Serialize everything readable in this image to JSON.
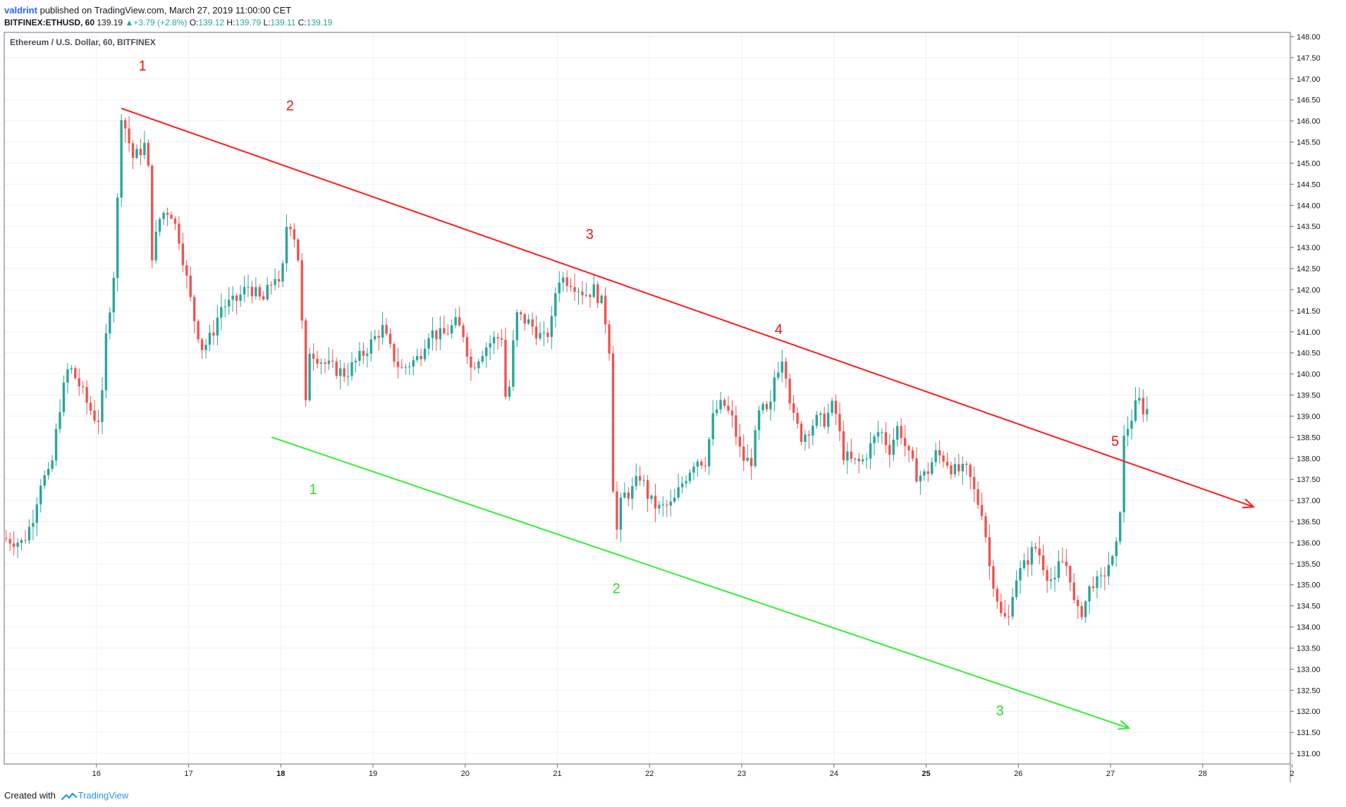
{
  "header": {
    "author": "valdrint",
    "published_text": "published on TradingView.com, March 27, 2019 11:00:00 CET"
  },
  "quote": {
    "symbol": "BITFINEX:ETHUSD, 60",
    "last": "139.19",
    "change": "+3.79 (+2.8%)",
    "o_label": "O:",
    "o_value": "139.12",
    "h_label": "H:",
    "h_value": "139.79",
    "l_label": "L:",
    "l_value": "139.11",
    "c_label": "C:",
    "c_value": "139.19"
  },
  "footer": {
    "created_with": "Created with",
    "brand": "TradingView",
    "icon": "tradingview-logo-icon"
  },
  "colors": {
    "bull": "#26a69a",
    "bear": "#ef5350",
    "resistance": "#ff1a1a",
    "support": "#33ee33",
    "grid": "#eef0f3"
  },
  "chart_data": {
    "type": "candlestick",
    "title": "Ethereum / U.S. Dollar, 60, BITFINEX",
    "ylim": [
      130.75,
      148.1
    ],
    "y_ticks": [
      "131.00",
      "131.50",
      "132.00",
      "132.50",
      "133.00",
      "133.50",
      "134.00",
      "134.50",
      "135.00",
      "135.50",
      "136.00",
      "136.50",
      "137.00",
      "137.50",
      "138.00",
      "138.50",
      "139.00",
      "139.50",
      "140.00",
      "140.50",
      "141.00",
      "141.50",
      "142.00",
      "142.50",
      "143.00",
      "143.50",
      "144.00",
      "144.50",
      "145.00",
      "145.50",
      "146.00",
      "146.50",
      "147.00",
      "147.50",
      "148.00"
    ],
    "x_range_days": [
      15.0,
      28.95
    ],
    "x_ticks": [
      {
        "day": 16,
        "label": "16",
        "bold": false
      },
      {
        "day": 17,
        "label": "17",
        "bold": false
      },
      {
        "day": 18,
        "label": "18",
        "bold": true
      },
      {
        "day": 19,
        "label": "19",
        "bold": false
      },
      {
        "day": 20,
        "label": "20",
        "bold": false
      },
      {
        "day": 21,
        "label": "21",
        "bold": false
      },
      {
        "day": 22,
        "label": "22",
        "bold": false
      },
      {
        "day": 23,
        "label": "23",
        "bold": false
      },
      {
        "day": 24,
        "label": "24",
        "bold": false
      },
      {
        "day": 25,
        "label": "25",
        "bold": true
      },
      {
        "day": 26,
        "label": "26",
        "bold": false
      },
      {
        "day": 27,
        "label": "27",
        "bold": false
      },
      {
        "day": 28,
        "label": "28",
        "bold": false
      },
      {
        "day": 28.97,
        "label": "2",
        "bold": false
      }
    ],
    "keypoints": [
      [
        15.0,
        136.1
      ],
      [
        15.2,
        136.0
      ],
      [
        15.3,
        136.5
      ],
      [
        15.4,
        137.5
      ],
      [
        15.5,
        137.6
      ],
      [
        15.6,
        139.2
      ],
      [
        15.7,
        140.2
      ],
      [
        15.8,
        139.8
      ],
      [
        15.9,
        139.3
      ],
      [
        16.0,
        138.9
      ],
      [
        16.05,
        139.0
      ],
      [
        16.1,
        140.8
      ],
      [
        16.2,
        142.6
      ],
      [
        16.27,
        146.2
      ],
      [
        16.4,
        145.1
      ],
      [
        16.55,
        145.5
      ],
      [
        16.6,
        142.8
      ],
      [
        16.7,
        143.8
      ],
      [
        16.8,
        143.9
      ],
      [
        16.9,
        143.2
      ],
      [
        17.05,
        141.4
      ],
      [
        17.15,
        140.6
      ],
      [
        17.25,
        140.9
      ],
      [
        17.35,
        141.6
      ],
      [
        17.5,
        141.7
      ],
      [
        17.65,
        142.1
      ],
      [
        17.8,
        141.7
      ],
      [
        17.95,
        142.4
      ],
      [
        18.0,
        141.8
      ],
      [
        18.05,
        143.5
      ],
      [
        18.12,
        143.6
      ],
      [
        18.2,
        142.6
      ],
      [
        18.27,
        139.2
      ],
      [
        18.3,
        140.6
      ],
      [
        18.5,
        140.2
      ],
      [
        18.7,
        140.0
      ],
      [
        18.9,
        140.5
      ],
      [
        19.1,
        141.1
      ],
      [
        19.2,
        140.5
      ],
      [
        19.3,
        140.1
      ],
      [
        19.5,
        140.4
      ],
      [
        19.6,
        141.0
      ],
      [
        19.75,
        140.9
      ],
      [
        19.9,
        141.2
      ],
      [
        20.0,
        140.9
      ],
      [
        20.05,
        140.1
      ],
      [
        20.2,
        140.6
      ],
      [
        20.3,
        140.8
      ],
      [
        20.4,
        140.9
      ],
      [
        20.45,
        139.0
      ],
      [
        20.55,
        141.4
      ],
      [
        20.7,
        141.2
      ],
      [
        20.85,
        140.8
      ],
      [
        20.93,
        141.1
      ],
      [
        21.0,
        142.3
      ],
      [
        21.15,
        142.2
      ],
      [
        21.3,
        141.9
      ],
      [
        21.4,
        142.0
      ],
      [
        21.5,
        141.6
      ],
      [
        21.57,
        140.5
      ],
      [
        21.62,
        135.9
      ],
      [
        21.7,
        137.1
      ],
      [
        21.8,
        137.2
      ],
      [
        21.9,
        137.6
      ],
      [
        22.0,
        137.0
      ],
      [
        22.1,
        136.8
      ],
      [
        22.25,
        136.9
      ],
      [
        22.35,
        137.4
      ],
      [
        22.5,
        138.0
      ],
      [
        22.6,
        137.9
      ],
      [
        22.7,
        139.1
      ],
      [
        22.8,
        139.3
      ],
      [
        22.9,
        138.9
      ],
      [
        23.0,
        138.0
      ],
      [
        23.1,
        137.9
      ],
      [
        23.2,
        139.2
      ],
      [
        23.3,
        139.0
      ],
      [
        23.35,
        139.9
      ],
      [
        23.45,
        140.5
      ],
      [
        23.55,
        139.0
      ],
      [
        23.65,
        138.5
      ],
      [
        23.8,
        138.9
      ],
      [
        23.9,
        138.9
      ],
      [
        24.0,
        139.3
      ],
      [
        24.1,
        138.1
      ],
      [
        24.2,
        137.9
      ],
      [
        24.3,
        137.9
      ],
      [
        24.4,
        138.3
      ],
      [
        24.5,
        138.7
      ],
      [
        24.6,
        138.2
      ],
      [
        24.7,
        138.8
      ],
      [
        24.8,
        138.1
      ],
      [
        24.9,
        137.6
      ],
      [
        25.0,
        137.6
      ],
      [
        25.1,
        138.1
      ],
      [
        25.2,
        138.0
      ],
      [
        25.3,
        137.7
      ],
      [
        25.45,
        137.7
      ],
      [
        25.55,
        137.0
      ],
      [
        25.62,
        136.7
      ],
      [
        25.68,
        135.5
      ],
      [
        25.75,
        134.9
      ],
      [
        25.82,
        134.2
      ],
      [
        25.9,
        134.2
      ],
      [
        25.95,
        135.1
      ],
      [
        26.05,
        135.4
      ],
      [
        26.15,
        135.8
      ],
      [
        26.2,
        135.9
      ],
      [
        26.3,
        135.3
      ],
      [
        26.4,
        135.0
      ],
      [
        26.45,
        135.6
      ],
      [
        26.55,
        135.4
      ],
      [
        26.62,
        134.3
      ],
      [
        26.7,
        134.4
      ],
      [
        26.8,
        135.1
      ],
      [
        26.88,
        135.0
      ],
      [
        26.98,
        135.5
      ],
      [
        27.05,
        135.6
      ],
      [
        27.1,
        136.7
      ],
      [
        27.15,
        138.6
      ],
      [
        27.2,
        138.8
      ],
      [
        27.3,
        139.4
      ],
      [
        27.37,
        139.1
      ],
      [
        27.42,
        139.2
      ]
    ],
    "resistance_line": {
      "from": [
        16.27,
        146.3
      ],
      "to": [
        28.55,
        136.85
      ]
    },
    "support_line": {
      "from": [
        17.9,
        138.5
      ],
      "to": [
        27.2,
        131.6
      ]
    },
    "annotations": [
      {
        "text": "1",
        "day": 16.5,
        "price": 147.2,
        "color": "resistance"
      },
      {
        "text": "2",
        "day": 18.1,
        "price": 146.25,
        "color": "resistance"
      },
      {
        "text": "3",
        "day": 21.35,
        "price": 143.2,
        "color": "resistance"
      },
      {
        "text": "4",
        "day": 23.4,
        "price": 140.95,
        "color": "resistance"
      },
      {
        "text": "5",
        "day": 27.05,
        "price": 138.3,
        "color": "resistance"
      },
      {
        "text": "1",
        "day": 18.35,
        "price": 137.15,
        "color": "support"
      },
      {
        "text": "2",
        "day": 21.64,
        "price": 134.8,
        "color": "support"
      },
      {
        "text": "3",
        "day": 25.8,
        "price": 131.9,
        "color": "support"
      }
    ]
  }
}
